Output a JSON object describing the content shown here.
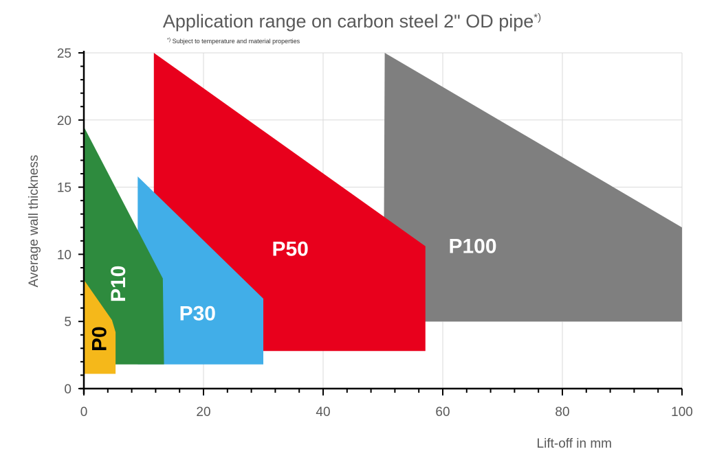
{
  "chart_data": {
    "type": "area",
    "title": "Application range on carbon steel 2\" OD pipe",
    "title_sup": "*)",
    "footnote_sup": "*)",
    "footnote": "Subject to temperature and material properties",
    "xlabel": "Lift-off in mm",
    "ylabel": "Average wall thickness",
    "xlim": [
      0,
      100
    ],
    "ylim": [
      0,
      25
    ],
    "xticks": [
      "0",
      "20",
      "40",
      "60",
      "80",
      "100"
    ],
    "yticks": [
      "0",
      "5",
      "10",
      "15",
      "20",
      "25"
    ],
    "grid": true,
    "series": [
      {
        "name": "P100",
        "color": "#7f7f7f",
        "label_color": "#ffffff",
        "label_rotated": false,
        "label_pos": [
          65,
          10.5
        ],
        "polygon": [
          [
            50.3,
            25
          ],
          [
            100,
            12
          ],
          [
            100,
            5
          ],
          [
            50.1,
            5
          ]
        ]
      },
      {
        "name": "P50",
        "color": "#e8001c",
        "label_color": "#ffffff",
        "label_rotated": false,
        "label_pos": [
          34.5,
          10.3
        ],
        "polygon": [
          [
            11.7,
            25
          ],
          [
            57.1,
            10.6
          ],
          [
            57.1,
            2.8
          ],
          [
            11.7,
            2.8
          ]
        ]
      },
      {
        "name": "P30",
        "color": "#41aee8",
        "label_color": "#ffffff",
        "label_rotated": false,
        "label_pos": [
          19,
          5.5
        ],
        "polygon": [
          [
            9,
            15.8
          ],
          [
            30,
            6.7
          ],
          [
            30,
            1.8
          ],
          [
            9,
            1.8
          ]
        ]
      },
      {
        "name": "P10",
        "color": "#2e8b3e",
        "label_color": "#ffffff",
        "label_rotated": true,
        "label_pos": [
          6,
          7.8
        ],
        "polygon": [
          [
            0,
            19.5
          ],
          [
            13.2,
            8.2
          ],
          [
            13.4,
            1.8
          ],
          [
            0,
            1.8
          ]
        ]
      },
      {
        "name": "P0",
        "color": "#f5b81a",
        "label_color": "#000000",
        "label_rotated": true,
        "label_pos": [
          2.8,
          3.7
        ],
        "polygon": [
          [
            0,
            8.1
          ],
          [
            4.7,
            5.1
          ],
          [
            5.3,
            4.2
          ],
          [
            5.3,
            1.1
          ],
          [
            0,
            1.1
          ]
        ]
      }
    ]
  }
}
